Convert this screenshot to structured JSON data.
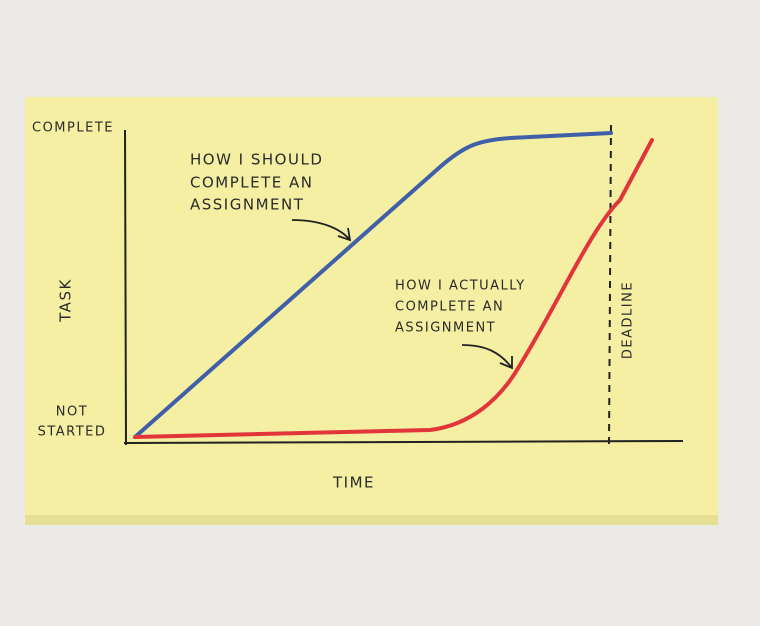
{
  "y_axis": {
    "top_label": "COMPLETE",
    "bottom_label": [
      "NOT",
      "STARTED"
    ],
    "title": "TASK"
  },
  "x_axis": {
    "title": "TIME"
  },
  "deadline": {
    "label": "DEADLINE"
  },
  "annotations": [
    {
      "lines": [
        "HOW I SHOULD",
        "COMPLETE AN",
        "ASSIGNMENT"
      ]
    },
    {
      "lines": [
        "HOW I ACTUALLY",
        "COMPLETE AN",
        "ASSIGNMENT"
      ]
    }
  ]
}
